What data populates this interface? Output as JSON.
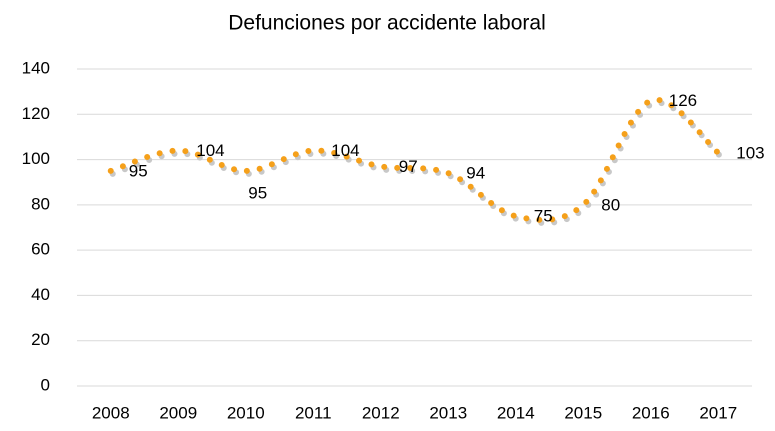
{
  "chart_data": {
    "type": "line",
    "title": "Defunciones por accidente laboral",
    "categories": [
      "2008",
      "2009",
      "2010",
      "2011",
      "2012",
      "2013",
      "2014",
      "2015",
      "2016",
      "2017"
    ],
    "values": [
      95,
      104,
      95,
      104,
      97,
      94,
      75,
      80,
      126,
      103
    ],
    "color": "#f5a01a",
    "ylim": [
      0,
      140
    ],
    "yticks": [
      0,
      20,
      40,
      60,
      80,
      100,
      120,
      140
    ],
    "grid": true
  }
}
